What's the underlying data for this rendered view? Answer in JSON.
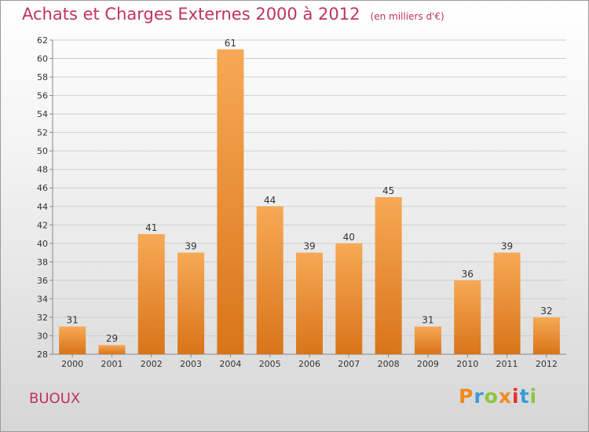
{
  "header": {
    "title": "Achats et Charges Externes 2000 à 2012",
    "subtitle": "(en milliers d'€)"
  },
  "footer": {
    "commune": "BUOUX",
    "logo_text": "Proxiti",
    "logo_colors": [
      "#f08c1e",
      "#3c9bd7",
      "#8dc63f",
      "#f08c1e",
      "#e8302c",
      "#3c9bd7",
      "#8dc63f"
    ]
  },
  "chart_data": {
    "type": "bar",
    "categories": [
      "2000",
      "2001",
      "2002",
      "2003",
      "2004",
      "2005",
      "2006",
      "2007",
      "2008",
      "2009",
      "2010",
      "2011",
      "2012"
    ],
    "values": [
      31,
      29,
      41,
      39,
      61,
      44,
      39,
      40,
      45,
      31,
      36,
      39,
      32
    ],
    "ylim": [
      28,
      62
    ],
    "yticks": [
      28,
      30,
      32,
      34,
      36,
      38,
      40,
      42,
      44,
      46,
      48,
      50,
      52,
      54,
      56,
      58,
      60,
      62
    ],
    "grid": true,
    "colors": {
      "bar_light": "#f7a955",
      "bar_dark": "#d9741a",
      "grid": "#cfcfcf",
      "axis": "#888888"
    }
  }
}
